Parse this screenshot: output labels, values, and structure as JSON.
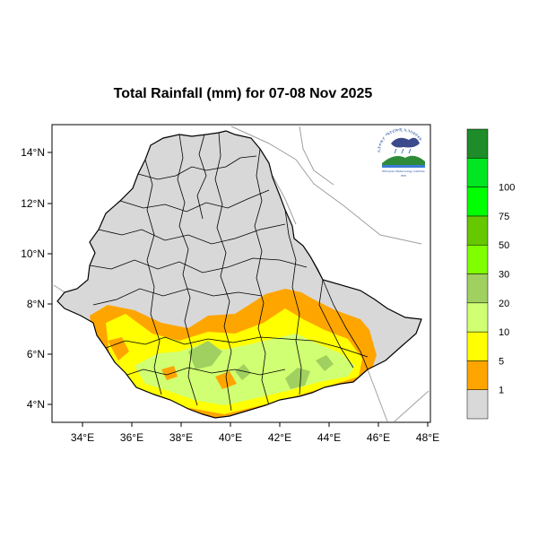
{
  "title": "Total Rainfall (mm) for 07-08 Nov 2025",
  "map": {
    "region": "Ethiopia",
    "x_ticks": [
      "34°E",
      "36°E",
      "38°E",
      "40°E",
      "42°E",
      "44°E",
      "46°E",
      "48°E"
    ],
    "y_ticks": [
      "14°N",
      "12°N",
      "10°N",
      "8°N",
      "6°N",
      "4°N"
    ],
    "x_range_deg": [
      33,
      48.2
    ],
    "y_range_deg": [
      3.2,
      15.2
    ],
    "land_color": "#d8d8d8",
    "boundary_color": "#000000",
    "neighbor_line_color": "#a0a0a0"
  },
  "legend": {
    "levels": [
      "1",
      "5",
      "10",
      "20",
      "30",
      "50",
      "75",
      "100"
    ],
    "colors": [
      "#d9d9d9",
      "#ffa500",
      "#ffff00",
      "#d1ff73",
      "#a0d060",
      "#80ff00",
      "#66c800",
      "#00ff00",
      "#00e620",
      "#1e8c28"
    ]
  },
  "logo": {
    "name": "ethiopian-meteorology-institute-logo",
    "arc_text": "ኢትዮጵያ ሜትሮሎጂ ኢንስቲትዩት",
    "caption": "Ethiopian Meteorology Institute",
    "abbr": "EMI"
  }
}
